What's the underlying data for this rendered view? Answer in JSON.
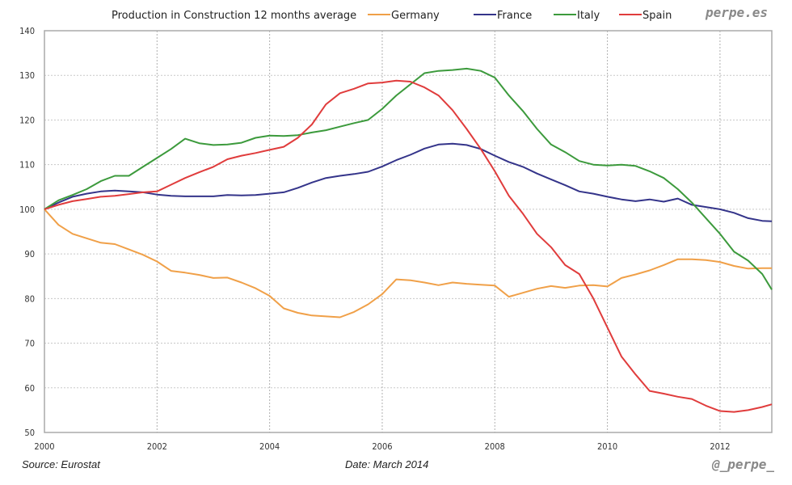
{
  "brand": "perpe.es",
  "footer": {
    "source": "Source: Eurostat",
    "date": "Date: March 2014",
    "handle": "@_perpe_"
  },
  "chart_data": {
    "type": "line",
    "title": "Production in Construction 12 months average",
    "xlabel": "",
    "ylabel": "",
    "xlim": [
      2000,
      2012.92
    ],
    "ylim": [
      50,
      140
    ],
    "x_ticks": [
      2000,
      2002,
      2004,
      2006,
      2008,
      2010,
      2012
    ],
    "y_ticks": [
      50,
      60,
      70,
      80,
      90,
      100,
      110,
      120,
      130,
      140
    ],
    "grid": true,
    "legend": "top",
    "x": [
      2000.0,
      2000.25,
      2000.5,
      2000.75,
      2001.0,
      2001.25,
      2001.5,
      2001.75,
      2002.0,
      2002.25,
      2002.5,
      2002.75,
      2003.0,
      2003.25,
      2003.5,
      2003.75,
      2004.0,
      2004.25,
      2004.5,
      2004.75,
      2005.0,
      2005.25,
      2005.5,
      2005.75,
      2006.0,
      2006.25,
      2006.5,
      2006.75,
      2007.0,
      2007.25,
      2007.5,
      2007.75,
      2008.0,
      2008.25,
      2008.5,
      2008.75,
      2009.0,
      2009.25,
      2009.5,
      2009.75,
      2010.0,
      2010.25,
      2010.5,
      2010.75,
      2011.0,
      2011.25,
      2011.5,
      2011.75,
      2012.0,
      2012.25,
      2012.5,
      2012.75,
      2012.92
    ],
    "series": [
      {
        "name": "Germany",
        "color": "#f0a048",
        "values": [
          100,
          96.5,
          94.5,
          93.5,
          92.5,
          92.2,
          91.0,
          89.8,
          88.3,
          86.2,
          85.8,
          85.3,
          84.6,
          84.7,
          83.6,
          82.3,
          80.6,
          77.8,
          76.8,
          76.2,
          76.0,
          75.8,
          77.0,
          78.7,
          81.0,
          84.3,
          84.1,
          83.6,
          83.0,
          83.6,
          83.3,
          83.1,
          82.9,
          80.4,
          81.3,
          82.2,
          82.8,
          82.4,
          82.9,
          83.0,
          82.7,
          84.6,
          85.4,
          86.3,
          87.5,
          88.8,
          88.8,
          88.6,
          88.2,
          87.3,
          86.7,
          86.8,
          86.8
        ]
      },
      {
        "name": "France",
        "color": "#34348a",
        "values": [
          100,
          101.5,
          102.8,
          103.5,
          104.0,
          104.2,
          104.0,
          103.8,
          103.3,
          103.0,
          102.9,
          102.9,
          102.9,
          103.2,
          103.1,
          103.2,
          103.5,
          103.8,
          104.8,
          106.0,
          107.0,
          107.5,
          107.9,
          108.4,
          109.6,
          111.0,
          112.2,
          113.6,
          114.5,
          114.7,
          114.4,
          113.5,
          112.0,
          110.6,
          109.5,
          108.0,
          106.7,
          105.4,
          104.0,
          103.5,
          102.8,
          102.2,
          101.8,
          102.2,
          101.7,
          102.4,
          101.0,
          100.5,
          100.0,
          99.2,
          98.0,
          97.4,
          97.3
        ]
      },
      {
        "name": "Italy",
        "color": "#3c9a3c",
        "values": [
          100,
          102.0,
          103.2,
          104.5,
          106.3,
          107.5,
          107.5,
          109.5,
          111.5,
          113.5,
          115.8,
          114.8,
          114.4,
          114.5,
          114.9,
          116.0,
          116.5,
          116.4,
          116.6,
          117.2,
          117.7,
          118.5,
          119.3,
          120.0,
          122.5,
          125.5,
          128.0,
          130.5,
          131.0,
          131.2,
          131.5,
          131.0,
          129.5,
          125.5,
          122.0,
          118.0,
          114.5,
          112.8,
          110.8,
          110.0,
          109.8,
          110.0,
          109.7,
          108.5,
          107.0,
          104.5,
          101.5,
          98.0,
          94.5,
          90.5,
          88.5,
          85.5,
          82.0
        ]
      },
      {
        "name": "Spain",
        "color": "#e03c3c",
        "values": [
          100,
          101.0,
          101.8,
          102.3,
          102.8,
          103.0,
          103.4,
          103.8,
          104.0,
          105.5,
          107.0,
          108.3,
          109.5,
          111.2,
          112.0,
          112.6,
          113.3,
          114.0,
          116.0,
          119.0,
          123.5,
          126.0,
          127.0,
          128.2,
          128.4,
          128.8,
          128.6,
          127.3,
          125.5,
          122.2,
          118.0,
          113.5,
          108.5,
          103.0,
          99.0,
          94.5,
          91.5,
          87.5,
          85.5,
          80.0,
          73.5,
          67.0,
          63.0,
          59.3,
          58.7,
          58.0,
          57.5,
          56.0,
          54.8,
          54.6,
          55.0,
          55.7,
          56.3
        ]
      }
    ]
  }
}
